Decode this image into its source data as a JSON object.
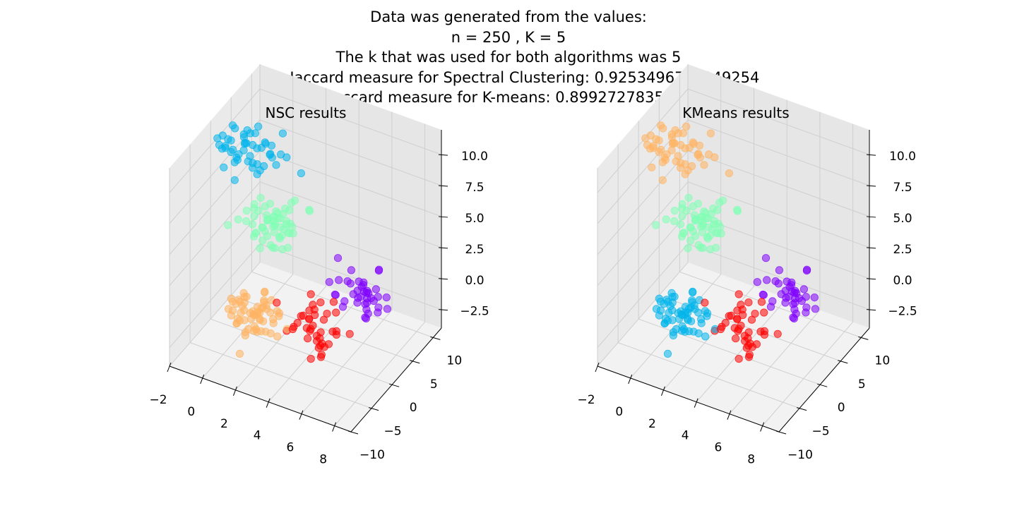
{
  "figure": {
    "suptitle_lines": [
      "Data was generated from the values:",
      "n = 250 , K = 5",
      "The k that was used for both algorithms was 5",
      "The Jaccard measure for Spectral Clustering: 0.9253496778249254",
      "The Jaccard measure for K-means: 0.8992727835370571"
    ]
  },
  "colors": {
    "purple": "#8000ff",
    "blue": "#00b4eb",
    "green": "#80ffb4",
    "orange": "#ffb360",
    "red": "#ff0000"
  },
  "chart_data": [
    {
      "type": "scatter",
      "projection": "3d",
      "title": "NSC results",
      "xlim": [
        -2,
        9
      ],
      "ylim": [
        -10,
        12
      ],
      "zlim": [
        -4,
        12
      ],
      "xticks": [
        -2,
        0,
        2,
        4,
        6,
        8
      ],
      "yticks": [
        -10,
        -5,
        0,
        5,
        10
      ],
      "zticks": [
        -2.5,
        0.0,
        2.5,
        5.0,
        7.5,
        10.0
      ],
      "xtick_labels": [
        "−2",
        "0",
        "2",
        "4",
        "6",
        "8"
      ],
      "ytick_labels": [
        "−10",
        "−5",
        "0",
        "5",
        "10"
      ],
      "ztick_labels": [
        "−2.5",
        "0.0",
        "2.5",
        "5.0",
        "7.5",
        "10.0"
      ],
      "grid": true,
      "clusters": [
        {
          "color": "purple",
          "count": 40,
          "center": [
            7,
            1,
            2
          ]
        },
        {
          "color": "blue",
          "count": 50,
          "center": [
            0,
            2,
            10
          ]
        },
        {
          "color": "green",
          "count": 60,
          "center": [
            1,
            3,
            4
          ]
        },
        {
          "color": "orange",
          "count": 60,
          "center": [
            2,
            -5,
            0
          ]
        },
        {
          "color": "red",
          "count": 40,
          "center": [
            5,
            -3,
            0
          ]
        }
      ]
    },
    {
      "type": "scatter",
      "projection": "3d",
      "title": "KMeans results",
      "xlim": [
        -2,
        9
      ],
      "ylim": [
        -10,
        12
      ],
      "zlim": [
        -4,
        12
      ],
      "xticks": [
        -2,
        0,
        2,
        4,
        6,
        8
      ],
      "yticks": [
        -10,
        -5,
        0,
        5,
        10
      ],
      "zticks": [
        -2.5,
        0.0,
        2.5,
        5.0,
        7.5,
        10.0
      ],
      "xtick_labels": [
        "−2",
        "0",
        "2",
        "4",
        "6",
        "8"
      ],
      "ytick_labels": [
        "−10",
        "−5",
        "0",
        "5",
        "10"
      ],
      "ztick_labels": [
        "−2.5",
        "0.0",
        "2.5",
        "5.0",
        "7.5",
        "10.0"
      ],
      "grid": true,
      "clusters": [
        {
          "color": "purple",
          "count": 40,
          "center": [
            7,
            1,
            2
          ]
        },
        {
          "color": "orange",
          "count": 50,
          "center": [
            0,
            2,
            10
          ]
        },
        {
          "color": "green",
          "count": 60,
          "center": [
            1,
            3,
            4
          ]
        },
        {
          "color": "blue",
          "count": 60,
          "center": [
            2,
            -5,
            0
          ]
        },
        {
          "color": "red",
          "count": 40,
          "center": [
            5,
            -3,
            0
          ]
        }
      ]
    }
  ]
}
